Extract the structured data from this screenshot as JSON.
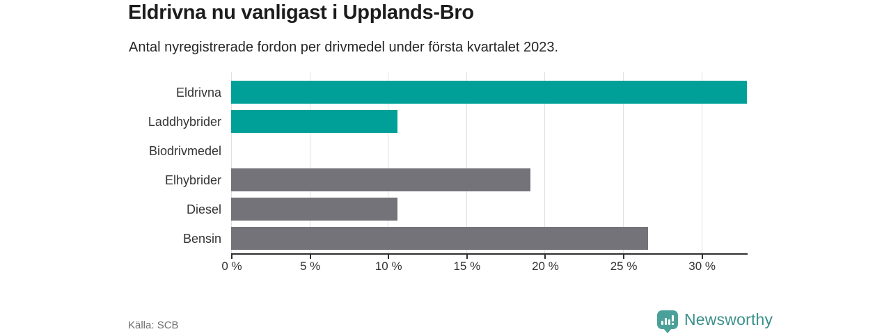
{
  "header": {
    "title": "Eldrivna nu vanligast i Upplands-Bro",
    "subtitle": "Antal nyregistrerade fordon per drivmedel under första kvartalet 2023."
  },
  "footer": {
    "source": "Källa: SCB",
    "brand": "Newsworthy",
    "brand_icon": "newsworthy-pin-with-bar-chart"
  },
  "colors": {
    "electric_bar": "#00a099",
    "fossil_bar": "#747379",
    "grid": "#e0e0e0",
    "axis": "#2f2f2f",
    "brand_text": "#3b9089",
    "brand_icon": "#4ba19a"
  },
  "chart_data": {
    "type": "bar",
    "orientation": "horizontal",
    "title": "Eldrivna nu vanligast i Upplands-Bro",
    "subtitle": "Antal nyregistrerade fordon per drivmedel under första kvartalet 2023.",
    "categories": [
      "Eldrivna",
      "Laddhybrider",
      "Biodrivmedel",
      "Elhybrider",
      "Diesel",
      "Bensin"
    ],
    "values": [
      32.9,
      10.6,
      0,
      19.1,
      10.6,
      26.6
    ],
    "bar_colors": [
      "#00a099",
      "#00a099",
      "#00a099",
      "#747379",
      "#747379",
      "#747379"
    ],
    "unit": "%",
    "xlabel": "",
    "ylabel": "",
    "x_tick_labels": [
      "0 %",
      "5 %",
      "10 %",
      "15 %",
      "20 %",
      "25 %",
      "30 %"
    ],
    "x_tick_values": [
      0,
      5,
      10,
      15,
      20,
      25,
      30
    ],
    "xlim": [
      0,
      32.9
    ],
    "grid": "vertical",
    "legend": "none"
  }
}
